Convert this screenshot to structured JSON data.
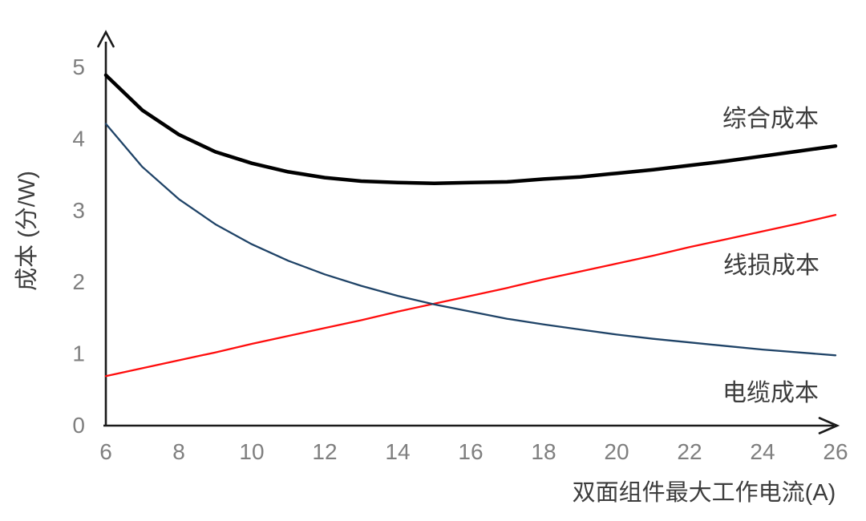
{
  "chart_data": {
    "type": "line",
    "title": "",
    "xlabel": "双面组件最大工作电流(A)",
    "ylabel": "成本 (分/W)",
    "xlim": [
      6,
      26
    ],
    "ylim": [
      0,
      5
    ],
    "grid": false,
    "legend_position": "inline-labels-right",
    "x_ticks": [
      6,
      8,
      10,
      12,
      14,
      16,
      18,
      20,
      22,
      24,
      26
    ],
    "y_ticks": [
      0,
      1,
      2,
      3,
      4,
      5
    ],
    "x": [
      6,
      7,
      8,
      9,
      10,
      11,
      12,
      13,
      14,
      15,
      16,
      17,
      18,
      19,
      20,
      21,
      22,
      23,
      24,
      25,
      26
    ],
    "series": [
      {
        "id": "total-cost",
        "name": "综合成本",
        "color": "#000000",
        "width": 4.5,
        "values": [
          4.88,
          4.39,
          4.05,
          3.81,
          3.65,
          3.53,
          3.45,
          3.4,
          3.38,
          3.37,
          3.38,
          3.39,
          3.43,
          3.46,
          3.51,
          3.56,
          3.62,
          3.68,
          3.75,
          3.82,
          3.89
        ]
      },
      {
        "id": "line-loss-cost",
        "name": "线损成本",
        "color": "#ff0d0d",
        "width": 2.3,
        "values": [
          0.68,
          0.79,
          0.9,
          1.01,
          1.13,
          1.24,
          1.35,
          1.46,
          1.58,
          1.69,
          1.8,
          1.91,
          2.03,
          2.14,
          2.25,
          2.36,
          2.48,
          2.59,
          2.7,
          2.81,
          2.93
        ]
      },
      {
        "id": "cable-cost",
        "name": "电缆成本",
        "color": "#1f4367",
        "width": 2.3,
        "values": [
          4.2,
          3.6,
          3.15,
          2.8,
          2.52,
          2.29,
          2.1,
          1.94,
          1.8,
          1.68,
          1.58,
          1.48,
          1.4,
          1.33,
          1.26,
          1.2,
          1.15,
          1.1,
          1.05,
          1.01,
          0.97
        ]
      }
    ],
    "annotation_note": "curve crossing of line-loss and cable cost at ~(15, 1.7); total cost minimum ~3.37 at x≈15"
  },
  "labels": {
    "total_cost": "综合成本",
    "line_loss_cost": "线损成本",
    "cable_cost": "电缆成本",
    "x_axis": "双面组件最大工作电流(A)",
    "y_axis": "成本 (分/W)"
  },
  "colors": {
    "axis": "#1a1a1a",
    "tick_text": "#7f7f7f",
    "label_text": "#3d3d3d",
    "total_cost_line": "#000000",
    "line_loss_line": "#ff0d0d",
    "cable_line": "#1f4367",
    "background": "#ffffff"
  }
}
